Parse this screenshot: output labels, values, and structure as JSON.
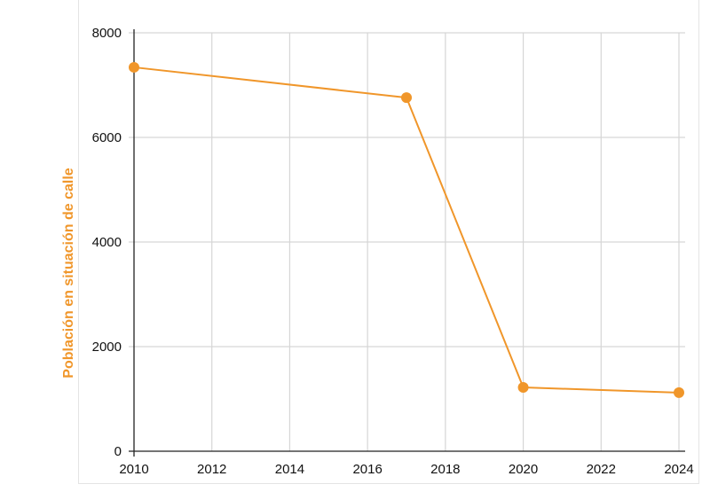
{
  "chart_data": {
    "type": "line",
    "title": "",
    "xlabel": "",
    "ylabel": "Población en situación de calle",
    "xlim": [
      2010,
      2024
    ],
    "ylim": [
      0,
      8000
    ],
    "x_ticks": [
      "2010",
      "2012",
      "2014",
      "2016",
      "2018",
      "2020",
      "2022",
      "2024"
    ],
    "y_ticks": [
      "0",
      "2000",
      "4000",
      "6000",
      "8000"
    ],
    "grid": true,
    "legend": "none",
    "series": [
      {
        "color": "#f0962a",
        "points": [
          {
            "x": 2010,
            "y": 7340
          },
          {
            "x": 2017,
            "y": 6760
          },
          {
            "x": 2020,
            "y": 1220
          },
          {
            "x": 2024,
            "y": 1120
          }
        ]
      }
    ]
  }
}
